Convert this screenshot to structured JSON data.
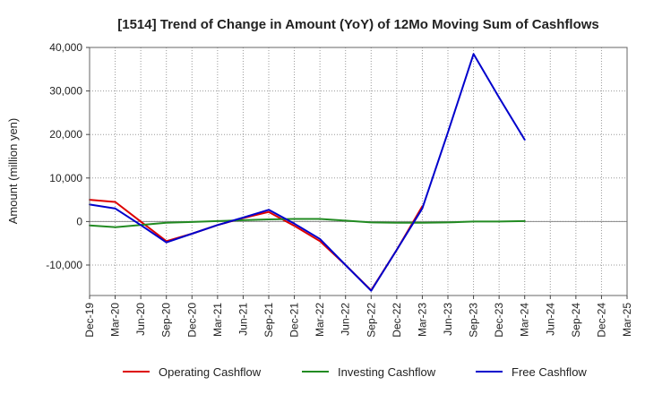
{
  "chart_data": {
    "type": "line",
    "title": "[1514]  Trend of Change in Amount (YoY) of 12Mo Moving Sum of Cashflows",
    "xlabel": "",
    "ylabel": "Amount (million yen)",
    "ylim": [
      -17000,
      40000
    ],
    "yticks": [
      -10000,
      0,
      10000,
      20000,
      30000,
      40000
    ],
    "ytick_labels": [
      "-10,000",
      "0",
      "10,000",
      "20,000",
      "30,000",
      "40,000"
    ],
    "categories": [
      "Dec-19",
      "Mar-20",
      "Jun-20",
      "Sep-20",
      "Dec-20",
      "Mar-21",
      "Jun-21",
      "Sep-21",
      "Dec-21",
      "Mar-22",
      "Jun-22",
      "Sep-22",
      "Dec-22",
      "Mar-23",
      "Jun-23",
      "Sep-23",
      "Dec-23",
      "Mar-24",
      "Jun-24",
      "Sep-24",
      "Dec-24",
      "Mar-25"
    ],
    "grid": true,
    "legend_position": "bottom",
    "series": [
      {
        "name": "Operating Cashflow",
        "color": "#dd0000",
        "values": [
          5000,
          4500,
          0,
          -4500,
          -2800,
          -800,
          800,
          2200,
          -1000,
          -4500,
          -10000,
          -15800,
          -6500,
          3500,
          null,
          null,
          null,
          null,
          null,
          null,
          null,
          null
        ]
      },
      {
        "name": "Investing Cashflow",
        "color": "#228b22",
        "values": [
          -900,
          -1300,
          -800,
          -300,
          -100,
          100,
          300,
          500,
          600,
          600,
          200,
          -200,
          -300,
          -300,
          -200,
          0,
          0,
          100,
          null,
          null,
          null,
          null
        ]
      },
      {
        "name": "Free Cashflow",
        "color": "#0000cc",
        "values": [
          3900,
          3000,
          -800,
          -4800,
          -2800,
          -800,
          900,
          2700,
          -500,
          -4000,
          -10000,
          -15900,
          -6500,
          3000,
          20500,
          38500,
          28500,
          18800,
          null,
          null,
          null,
          null
        ]
      }
    ]
  }
}
